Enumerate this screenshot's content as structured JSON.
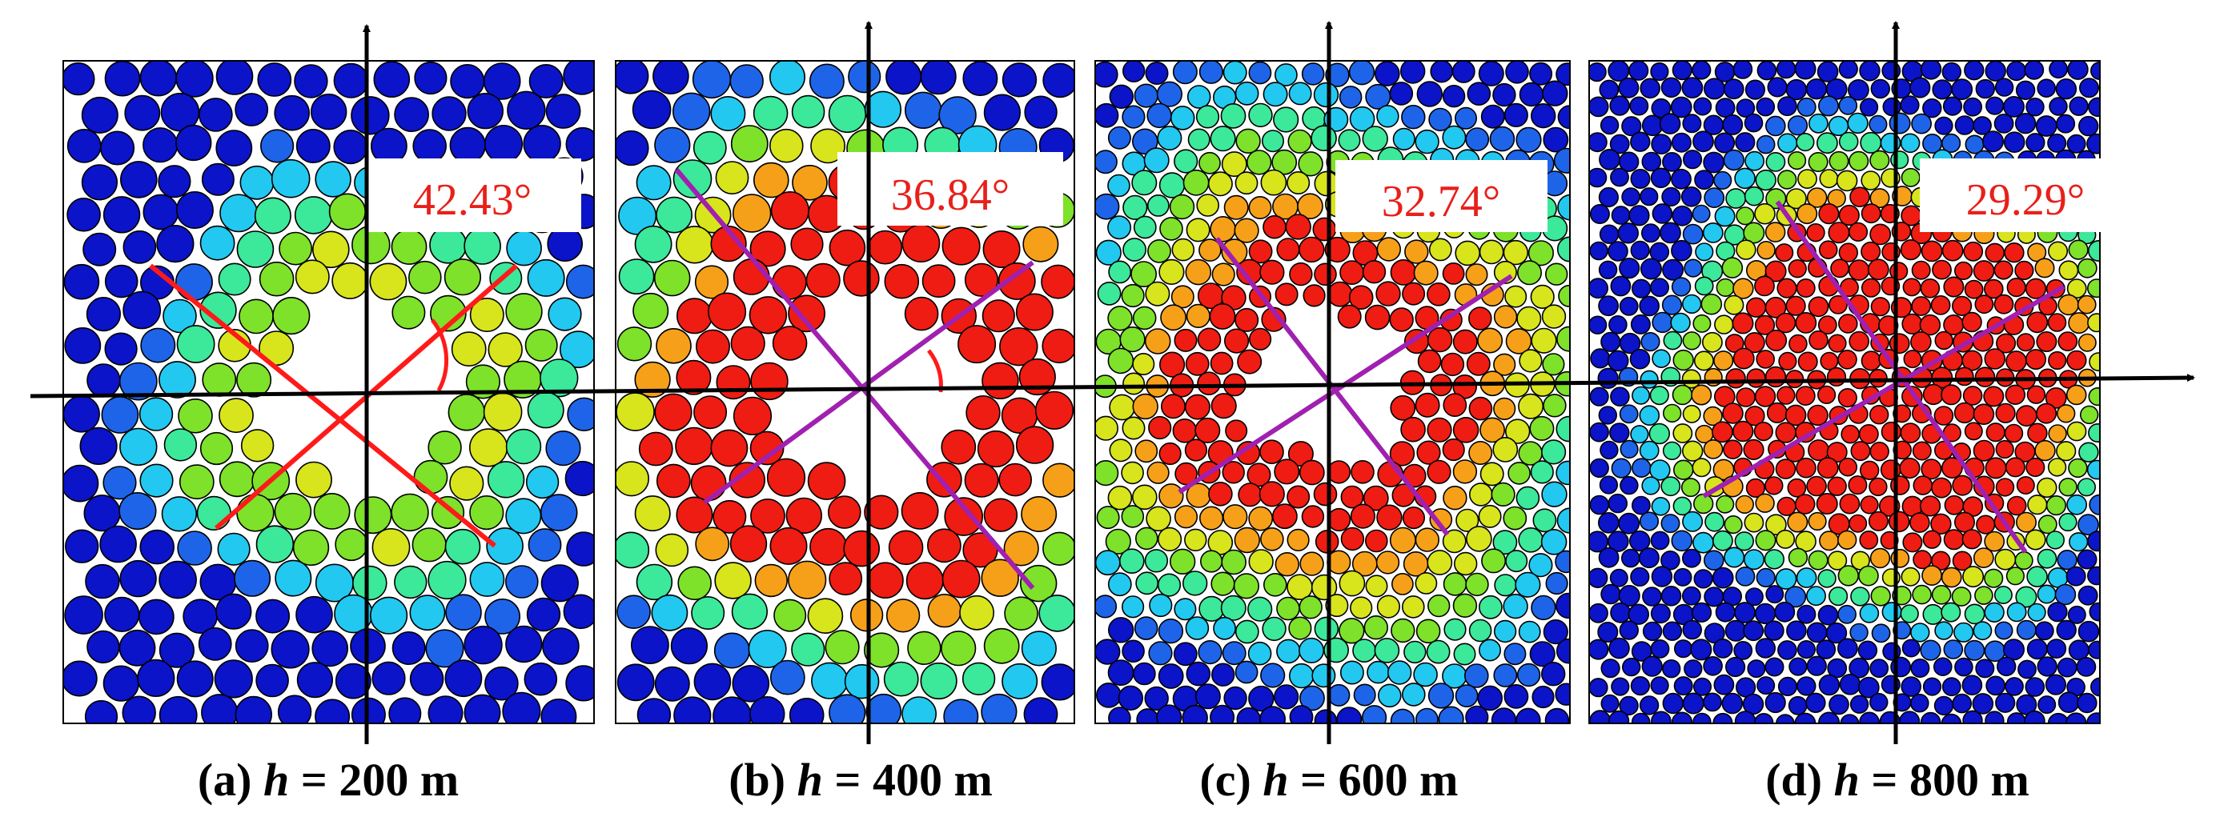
{
  "figure": {
    "colors": {
      "axis": "#000000",
      "angle_label": "#e8201a",
      "cross_a": "#ff1a1a",
      "cross_other": "#a020b0",
      "colormap": [
        "#0b14c8",
        "#1e64e8",
        "#22c8f0",
        "#3ce89a",
        "#7ee12a",
        "#d8e41c",
        "#f6a019",
        "#ee1c12"
      ]
    },
    "panels": [
      {
        "id": "a",
        "prefix": "(a) ",
        "var": "h",
        "value": " = 200 m",
        "angle": "42.43°",
        "cross_color": "#ff1a1a",
        "has_arc": true
      },
      {
        "id": "b",
        "prefix": "(b) ",
        "var": "h",
        "value": " = 400 m",
        "angle": "36.84°",
        "cross_color": "#a020b0",
        "has_arc": true
      },
      {
        "id": "c",
        "prefix": "(c) ",
        "var": "h",
        "value": " = 600 m",
        "angle": "32.74°",
        "cross_color": "#a020b0",
        "has_arc": false
      },
      {
        "id": "d",
        "prefix": "(d) ",
        "var": "h",
        "value": " = 800 m",
        "angle": "29.29°",
        "cross_color": "#a020b0",
        "has_arc": false
      }
    ]
  }
}
